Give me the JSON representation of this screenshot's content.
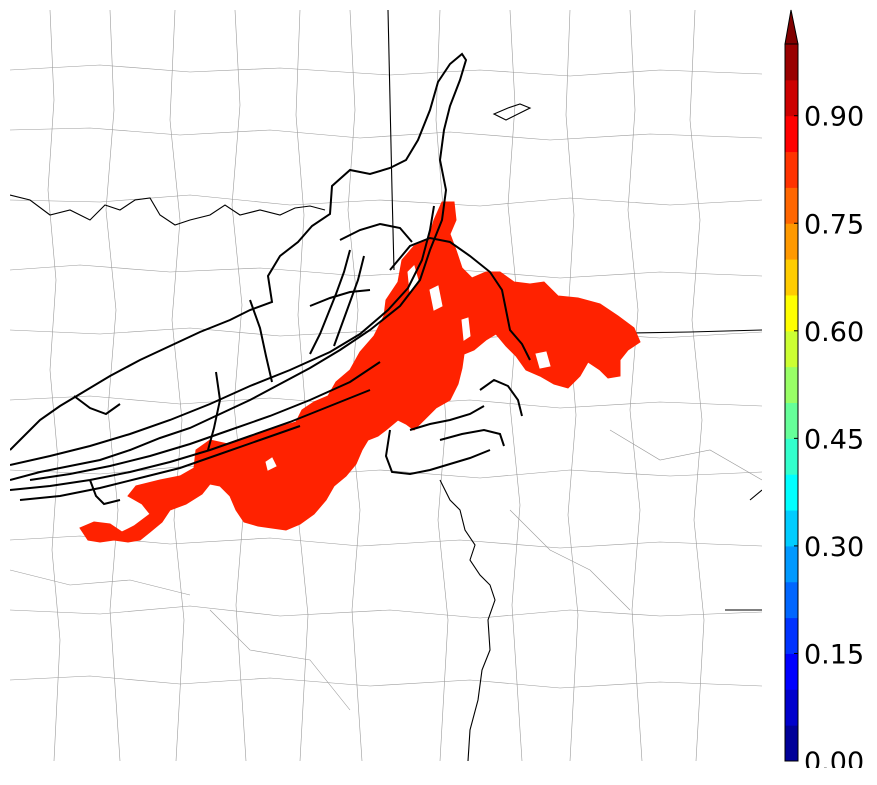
{
  "colorbar": {
    "tick_labels": [
      "0.00",
      "0.15",
      "0.30",
      "0.45",
      "0.60",
      "0.75",
      "0.90"
    ],
    "tick_values": [
      0.0,
      0.15,
      0.3,
      0.45,
      0.6,
      0.75,
      0.9
    ],
    "range": [
      0.0,
      1.0
    ],
    "extend": "max",
    "colormap": "jet",
    "levels": 20
  },
  "colors": {
    "probability_fill": "#ff2200",
    "county_lines": "#9a9a9a",
    "state_lines": "#000000",
    "contour_lines": "#000000"
  }
}
